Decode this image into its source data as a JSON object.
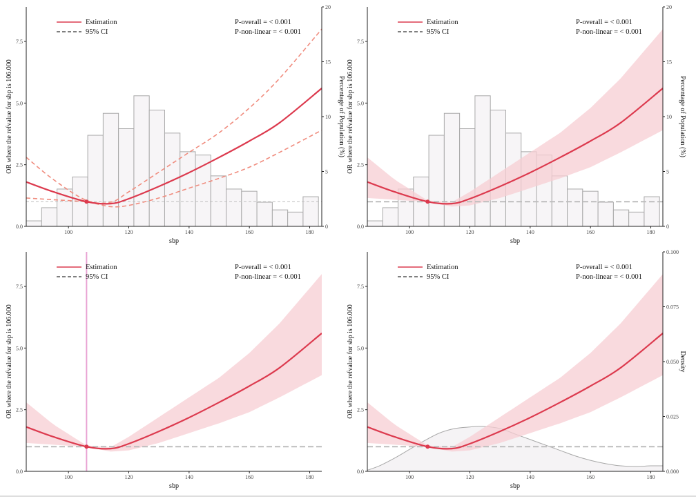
{
  "chart_data": [
    {
      "type": "line",
      "panel": "top-left",
      "xlabel": "sbp",
      "ylabel": "OR where the refvalue for sbp is 106.000",
      "y2label": "Percentage of Population (%)",
      "xlim": [
        86,
        184
      ],
      "ylim": [
        0,
        8.9
      ],
      "y2lim": [
        0,
        20
      ],
      "xticks": [
        "100",
        "120",
        "140",
        "160",
        "180"
      ],
      "yticks": [
        "0.0",
        "2.5",
        "5.0",
        "7.5"
      ],
      "y2ticks": [
        "0",
        "5",
        "10",
        "15",
        "20"
      ],
      "legend": [
        "Estimation",
        "95% CI"
      ],
      "legend_position": "top-left",
      "p_overall": "P-overall = < 0.001",
      "p_nonlinear": "P-non-linear = < 0.001",
      "ci_style": "dashed",
      "refline_style": "thin",
      "ref_x": 106,
      "ref_value": 1.0,
      "estimate": {
        "x": [
          86,
          95,
          106,
          114,
          120,
          130,
          140,
          150,
          160,
          170,
          184
        ],
        "y": [
          1.8,
          1.4,
          1.0,
          0.92,
          1.12,
          1.62,
          2.18,
          2.8,
          3.46,
          4.2,
          5.6
        ]
      },
      "ci_lower": {
        "x": [
          86,
          95,
          106,
          114,
          120,
          130,
          140,
          150,
          160,
          170,
          184
        ],
        "y": [
          1.15,
          1.08,
          0.99,
          0.8,
          0.85,
          1.15,
          1.55,
          1.95,
          2.4,
          3.0,
          3.9
        ]
      },
      "ci_upper": {
        "x": [
          86,
          95,
          106,
          114,
          120,
          130,
          140,
          150,
          160,
          170,
          184
        ],
        "y": [
          2.8,
          1.9,
          1.05,
          0.98,
          1.4,
          2.2,
          3.0,
          3.8,
          4.8,
          6.0,
          8.0
        ]
      },
      "histogram": {
        "bin_width": 5.1,
        "bin_starts": [
          86,
          91.1,
          96.2,
          101.3,
          106.4,
          111.5,
          116.6,
          121.7,
          126.8,
          131.9,
          137,
          142.1,
          147.2,
          152.3,
          157.4,
          162.5,
          167.6,
          172.7,
          177.8
        ],
        "percent": [
          0.5,
          1.7,
          3.4,
          4.5,
          8.3,
          10.3,
          8.9,
          11.9,
          10.6,
          8.5,
          6.8,
          6.5,
          4.6,
          3.4,
          3.2,
          2.2,
          1.5,
          1.3,
          2.7
        ]
      }
    },
    {
      "type": "line",
      "panel": "top-right",
      "xlabel": "sbp",
      "ylabel": "OR where the refvalue for sbp is 106.000",
      "y2label": "Percentage of Population (%)",
      "xlim": [
        86,
        184
      ],
      "ylim": [
        0,
        8.9
      ],
      "y2lim": [
        0,
        20
      ],
      "xticks": [
        "100",
        "120",
        "140",
        "160",
        "180"
      ],
      "yticks": [
        "0.0",
        "2.5",
        "5.0",
        "7.5"
      ],
      "y2ticks": [
        "0",
        "5",
        "10",
        "15",
        "20"
      ],
      "legend": [
        "Estimation",
        "95% CI"
      ],
      "legend_position": "top-left",
      "p_overall": "P-overall = < 0.001",
      "p_nonlinear": "P-non-linear = < 0.001",
      "ci_style": "band",
      "refline_style": "thick",
      "ref_x": 106,
      "ref_value": 1.0,
      "estimate": {
        "x": [
          86,
          95,
          106,
          114,
          120,
          130,
          140,
          150,
          160,
          170,
          184
        ],
        "y": [
          1.8,
          1.4,
          1.0,
          0.92,
          1.12,
          1.62,
          2.18,
          2.8,
          3.46,
          4.2,
          5.6
        ]
      },
      "ci_lower": {
        "x": [
          86,
          95,
          106,
          114,
          120,
          130,
          140,
          150,
          160,
          170,
          184
        ],
        "y": [
          1.15,
          1.08,
          0.99,
          0.8,
          0.85,
          1.15,
          1.55,
          1.95,
          2.4,
          3.0,
          3.9
        ]
      },
      "ci_upper": {
        "x": [
          86,
          95,
          106,
          114,
          120,
          130,
          140,
          150,
          160,
          170,
          184
        ],
        "y": [
          2.8,
          1.9,
          1.05,
          0.98,
          1.4,
          2.2,
          3.0,
          3.8,
          4.8,
          6.0,
          8.0
        ]
      },
      "histogram": {
        "bin_width": 5.1,
        "bin_starts": [
          86,
          91.1,
          96.2,
          101.3,
          106.4,
          111.5,
          116.6,
          121.7,
          126.8,
          131.9,
          137,
          142.1,
          147.2,
          152.3,
          157.4,
          162.5,
          167.6,
          172.7,
          177.8
        ],
        "percent": [
          0.5,
          1.7,
          3.4,
          4.5,
          8.3,
          10.3,
          8.9,
          11.9,
          10.6,
          8.5,
          6.8,
          6.5,
          4.6,
          3.4,
          3.2,
          2.2,
          1.5,
          1.3,
          2.7
        ]
      }
    },
    {
      "type": "line",
      "panel": "bottom-left",
      "xlabel": "sbp",
      "ylabel": "OR where the refvalue for sbp is 106.000",
      "xlim": [
        86,
        184
      ],
      "ylim": [
        0,
        8.9
      ],
      "xticks": [
        "100",
        "120",
        "140",
        "160",
        "180"
      ],
      "yticks": [
        "0.0",
        "2.5",
        "5.0",
        "7.5"
      ],
      "legend": [
        "Estimation",
        "95% CI"
      ],
      "legend_position": "top-left",
      "p_overall": "P-overall = < 0.001",
      "p_nonlinear": "P-non-linear = < 0.001",
      "ci_style": "band",
      "refline_style": "thick",
      "ref_x": 106,
      "ref_value": 1.0,
      "vertical_line_x": 106,
      "estimate": {
        "x": [
          86,
          95,
          106,
          114,
          120,
          130,
          140,
          150,
          160,
          170,
          184
        ],
        "y": [
          1.8,
          1.4,
          1.0,
          0.92,
          1.12,
          1.62,
          2.18,
          2.8,
          3.46,
          4.2,
          5.6
        ]
      },
      "ci_lower": {
        "x": [
          86,
          95,
          106,
          114,
          120,
          130,
          140,
          150,
          160,
          170,
          184
        ],
        "y": [
          1.15,
          1.08,
          0.99,
          0.8,
          0.85,
          1.15,
          1.55,
          1.95,
          2.4,
          3.0,
          3.9
        ]
      },
      "ci_upper": {
        "x": [
          86,
          95,
          106,
          114,
          120,
          130,
          140,
          150,
          160,
          170,
          184
        ],
        "y": [
          2.8,
          1.9,
          1.05,
          0.98,
          1.4,
          2.2,
          3.0,
          3.8,
          4.8,
          6.0,
          8.0
        ]
      }
    },
    {
      "type": "line",
      "panel": "bottom-right",
      "xlabel": "sbp",
      "ylabel": "OR where the refvalue for sbp is 106.000",
      "y2label": "Density",
      "xlim": [
        86,
        184
      ],
      "ylim": [
        0,
        8.9
      ],
      "y2lim": [
        0,
        0.1
      ],
      "xticks": [
        "100",
        "120",
        "140",
        "160",
        "180"
      ],
      "yticks": [
        "0.0",
        "2.5",
        "5.0",
        "7.5"
      ],
      "y2ticks": [
        "0.000",
        "0.025",
        "0.050",
        "0.075",
        "0.100"
      ],
      "legend": [
        "Estimation",
        "95% CI"
      ],
      "legend_position": "top-left",
      "p_overall": "P-overall = < 0.001",
      "p_nonlinear": "P-non-linear = < 0.001",
      "ci_style": "band",
      "refline_style": "thick",
      "ref_x": 106,
      "ref_value": 1.0,
      "estimate": {
        "x": [
          86,
          95,
          106,
          114,
          120,
          130,
          140,
          150,
          160,
          170,
          184
        ],
        "y": [
          1.8,
          1.4,
          1.0,
          0.92,
          1.12,
          1.62,
          2.18,
          2.8,
          3.46,
          4.2,
          5.6
        ]
      },
      "ci_lower": {
        "x": [
          86,
          95,
          106,
          114,
          120,
          130,
          140,
          150,
          160,
          170,
          184
        ],
        "y": [
          1.15,
          1.08,
          0.99,
          0.8,
          0.85,
          1.15,
          1.55,
          1.95,
          2.4,
          3.0,
          3.9
        ]
      },
      "ci_upper": {
        "x": [
          86,
          95,
          106,
          114,
          120,
          130,
          140,
          150,
          160,
          170,
          184
        ],
        "y": [
          2.8,
          1.9,
          1.05,
          0.98,
          1.4,
          2.2,
          3.0,
          3.8,
          4.8,
          6.0,
          8.0
        ]
      },
      "density": {
        "x": [
          86,
          90,
          95,
          100,
          105,
          110,
          115,
          120,
          124,
          130,
          135,
          140,
          145,
          150,
          155,
          160,
          165,
          170,
          175,
          180,
          184
        ],
        "y": [
          0.0005,
          0.0025,
          0.006,
          0.01,
          0.014,
          0.0175,
          0.0195,
          0.0202,
          0.0205,
          0.0195,
          0.017,
          0.0145,
          0.012,
          0.0095,
          0.007,
          0.005,
          0.0035,
          0.0025,
          0.0022,
          0.0025,
          0.0025
        ]
      }
    }
  ],
  "colors": {
    "estimate": "#dc3a4e",
    "ci_dashed": "#f08c7e",
    "ci_band": "#f7cdd3",
    "refline": "#bdbdbd",
    "vertical_line": "#e8a2d2",
    "hist_fill": "#f7f5f7",
    "hist_stroke": "#a8a8a8",
    "density_fill": "#f5f3f5",
    "density_stroke": "#a7a7a7",
    "axis": "#222222",
    "legend_ci": "#333333"
  }
}
